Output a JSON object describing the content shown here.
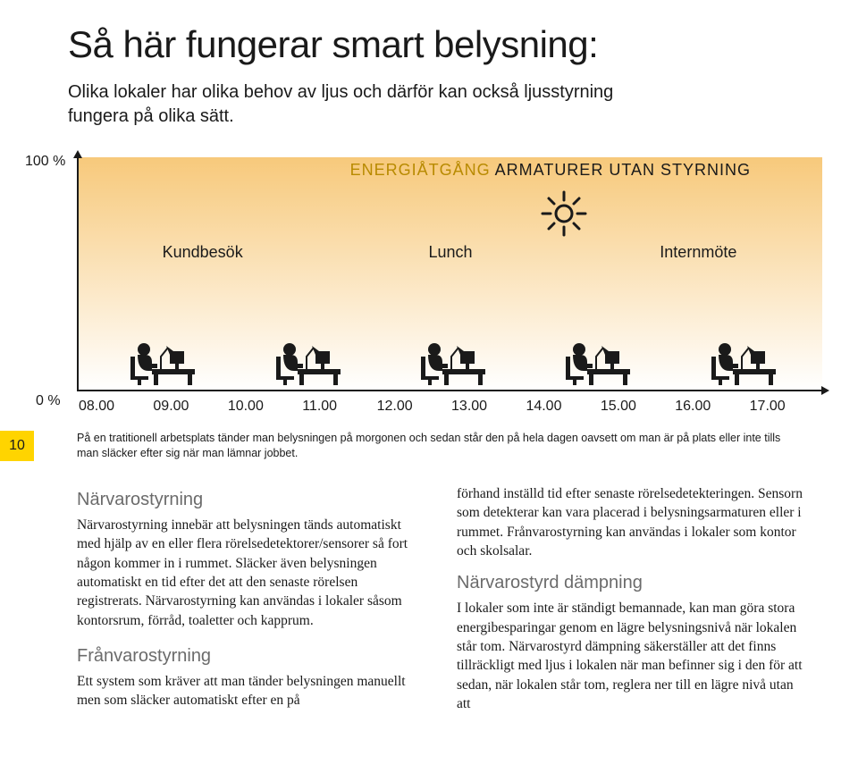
{
  "title": "Så här fungerar smart belysning:",
  "subtitle": "Olika lokaler har olika behov av ljus och därför kan också ljusstyrning fungera på olika sätt.",
  "page_number": "10",
  "colors": {
    "accent": "#b88a00",
    "gradient_top": "#f7c97b",
    "gradient_bottom": "#ffffff",
    "text": "#1a1a1a",
    "tab": "#ffd400",
    "silhouette": "#1a1a1a",
    "sun_stroke": "#1a1a1a",
    "h3": "#6b6b6b"
  },
  "chart": {
    "type": "area",
    "y_labels": {
      "top": "100 %",
      "bottom": "0 %"
    },
    "caption_accent": "ENERGIÅTGÅNG",
    "caption_rest": " ARMATURER UTAN STYRNING",
    "events": [
      "Kundbesök",
      "Lunch",
      "Internmöte"
    ],
    "x_ticks": [
      "08.00",
      "09.00",
      "10.00",
      "11.00",
      "12.00",
      "13.00",
      "14.00",
      "15.00",
      "16.00",
      "17.00"
    ],
    "people_count": 5,
    "note": "På en tratitionell arbetsplats tänder man belysningen på morgonen och sedan står den på hela dagen oavsett om man är på plats eller inte tills man släcker efter sig när man lämnar jobbet."
  },
  "body": {
    "left": [
      {
        "h": "Närvarostyrning",
        "p": "Närvarostyrning innebär att belysningen tänds automatiskt med hjälp av en eller flera rörelsedetektorer/sensorer så fort någon kommer in i rummet. Släcker även belysningen automatiskt en tid efter det att den senaste rörelsen registrerats. Närvarostyrning kan användas i lokaler såsom kontorsrum, förråd, toaletter och kapprum."
      },
      {
        "h": "Frånvarostyrning",
        "p": "Ett system som kräver att man tänder belysningen manuellt men som släcker automatiskt efter en på"
      }
    ],
    "right_intro": "förhand inställd tid efter senaste rörelsedetekteringen. Sensorn som detekterar kan vara placerad i belysningsarmaturen eller i rummet. Frånvarostyrning kan användas i lokaler som kontor och skolsalar.",
    "right": [
      {
        "h": "Närvarostyrd dämpning",
        "p": "I lokaler som inte är ständigt bemannade, kan man göra stora energibesparingar genom en lägre belysningsnivå när lokalen står tom. Närvarostyrd dämpning säkerställer att det finns tillräckligt med ljus i lokalen när man befinner sig i den för att sedan, när lokalen står tom, reglera ner till en lägre nivå utan att"
      }
    ]
  }
}
